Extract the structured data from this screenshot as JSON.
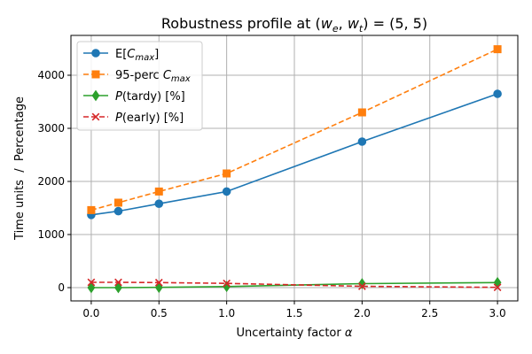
{
  "chart_data": {
    "type": "line",
    "title": "Robustness profile at (w_e, w_t) = (5, 5)",
    "title_parts": {
      "prefix": "Robustness profile at (",
      "w": "w",
      "sub_e": "e",
      "comma": ", ",
      "sub_t": "t",
      "suffix": ") = (5, 5)"
    },
    "xlabel": "Uncertainty factor α",
    "xlabel_parts": {
      "text": "Uncertainty factor ",
      "symbol": "α"
    },
    "ylabel": "Time units  /  Percentage",
    "xlim": [
      -0.15,
      3.15
    ],
    "ylim": [
      -250,
      4750
    ],
    "xticks": [
      "0.0",
      "0.5",
      "1.0",
      "1.5",
      "2.0",
      "2.5",
      "3.0"
    ],
    "yticks": [
      "0",
      "1000",
      "2000",
      "3000",
      "4000"
    ],
    "grid": true,
    "legend_position": "top-left",
    "x": [
      0.0,
      0.2,
      0.5,
      1.0,
      2.0,
      3.0
    ],
    "series": [
      {
        "name": "E[C_max]",
        "label": {
          "a": "E[",
          "b": "C",
          "sub": "max",
          "c": "]"
        },
        "values": [
          1370,
          1440,
          1580,
          1810,
          2750,
          3650
        ],
        "color": "#1f77b4",
        "marker": "circle",
        "dash": "solid"
      },
      {
        "name": "95-perc C_max",
        "label": {
          "a": "95-perc ",
          "b": "C",
          "sub": "max",
          "c": ""
        },
        "values": [
          1460,
          1600,
          1810,
          2150,
          3300,
          4490
        ],
        "color": "#ff7f0e",
        "marker": "square",
        "dash": "dashed"
      },
      {
        "name": "P(tardy) [%]",
        "label": {
          "a": "",
          "b": "P",
          "sub": "",
          "c": "(tardy) [%]"
        },
        "values": [
          0,
          0,
          5,
          20,
          75,
          95
        ],
        "color": "#2ca02c",
        "marker": "diamond",
        "dash": "solid"
      },
      {
        "name": "P(early) [%]",
        "label": {
          "a": "",
          "b": "P",
          "sub": "",
          "c": "(early) [%]"
        },
        "values": [
          100,
          100,
          95,
          80,
          25,
          5
        ],
        "color": "#d62728",
        "marker": "x",
        "dash": "dashed"
      }
    ]
  }
}
